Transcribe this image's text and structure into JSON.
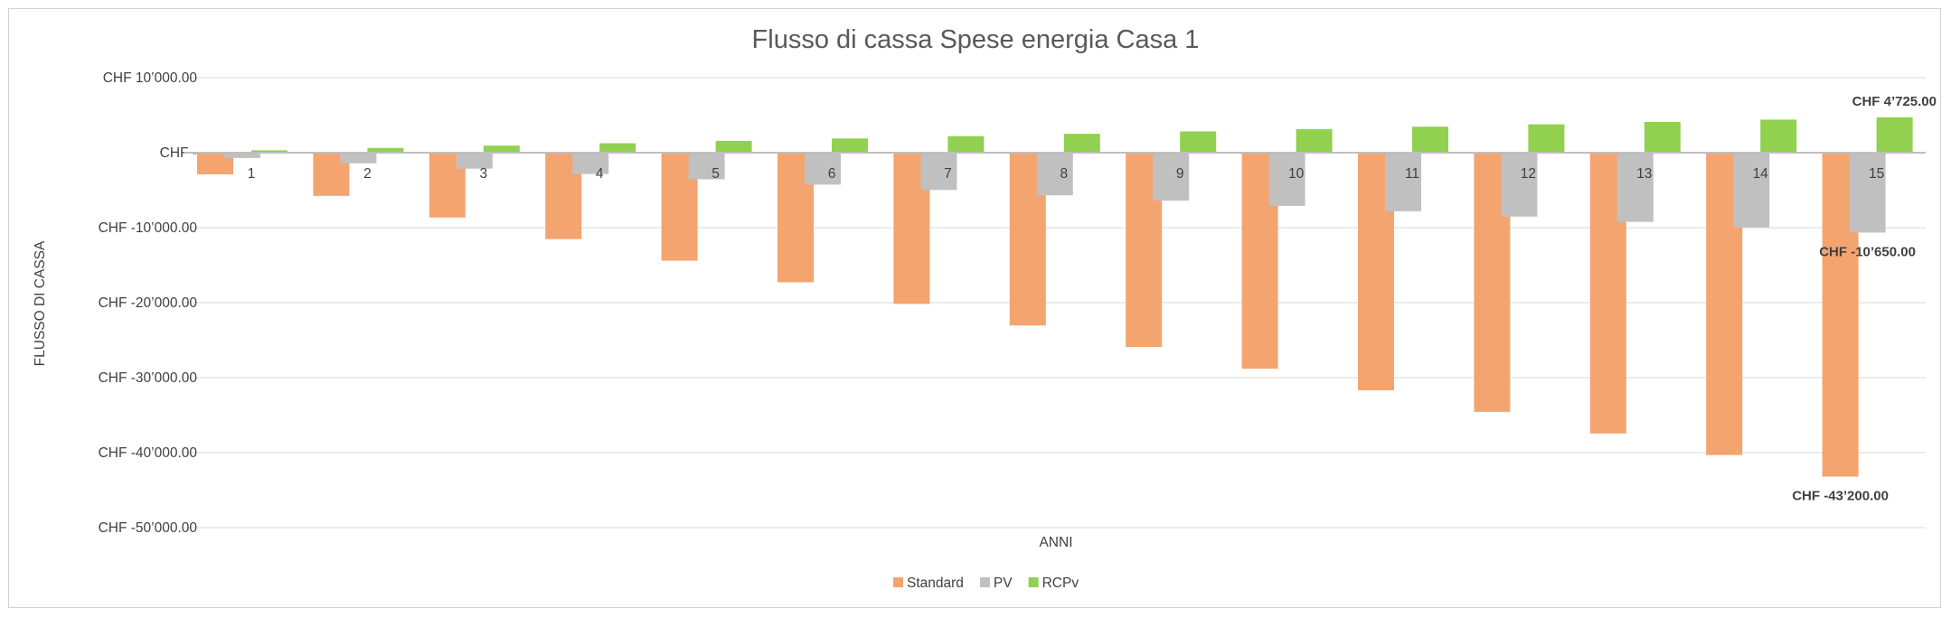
{
  "chart_data": {
    "type": "bar",
    "title": "Flusso di cassa Spese energia Casa 1",
    "xlabel": "ANNI",
    "ylabel": "FLUSSO DI CASSA",
    "categories": [
      "1",
      "2",
      "3",
      "4",
      "5",
      "6",
      "7",
      "8",
      "9",
      "10",
      "11",
      "12",
      "13",
      "14",
      "15"
    ],
    "ylim": [
      -50000,
      10000
    ],
    "yticks": [
      10000,
      0,
      -10000,
      -20000,
      -30000,
      -40000,
      -50000
    ],
    "ytick_labels": [
      "CHF 10’000.00",
      "CHF -",
      "CHF -10’000.00",
      "CHF -20’000.00",
      "CHF -30’000.00",
      "CHF -40’000.00",
      "CHF -50’000.00"
    ],
    "grid": true,
    "legend_position": "bottom",
    "series": [
      {
        "name": "Standard",
        "color": "#f4a46f",
        "values": [
          -2880,
          -5760,
          -8640,
          -11520,
          -14400,
          -17280,
          -20160,
          -23040,
          -25920,
          -28800,
          -31680,
          -34560,
          -37440,
          -40320,
          -43200
        ]
      },
      {
        "name": "PV",
        "color": "#c0c0c0",
        "values": [
          -710,
          -1420,
          -2130,
          -2840,
          -3550,
          -4260,
          -4970,
          -5680,
          -6390,
          -7100,
          -7810,
          -8520,
          -9230,
          -9940,
          -10650
        ]
      },
      {
        "name": "RCPv",
        "color": "#92d050",
        "values": [
          315,
          630,
          945,
          1260,
          1575,
          1890,
          2205,
          2520,
          2835,
          3150,
          3465,
          3780,
          4095,
          4410,
          4725
        ]
      }
    ],
    "data_labels": [
      {
        "series": "RCPv",
        "index": 14,
        "text": "CHF 4’725.00"
      },
      {
        "series": "PV",
        "index": 14,
        "text": "CHF -10’650.00"
      },
      {
        "series": "Standard",
        "index": 14,
        "text": "CHF -43’200.00"
      }
    ]
  }
}
